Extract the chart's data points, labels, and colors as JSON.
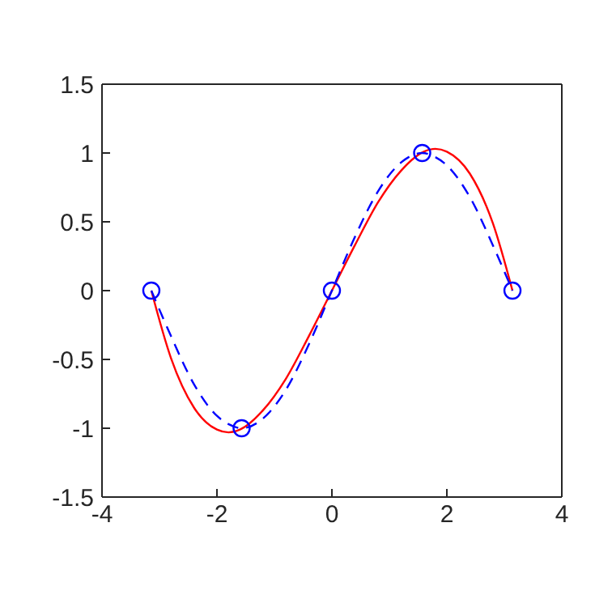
{
  "chart_data": {
    "type": "line",
    "xlim": [
      -4,
      4
    ],
    "ylim": [
      -1.5,
      1.5
    ],
    "xticks": [
      -4,
      -2,
      0,
      2,
      4
    ],
    "yticks": [
      -1.5,
      -1,
      -0.5,
      0,
      0.5,
      1,
      1.5
    ],
    "series": [
      {
        "color": "#ff0000",
        "line_style": "solid",
        "marker": "none",
        "x": [
          -3.1416,
          -2.8,
          -2.4,
          -2.0,
          -1.8,
          -1.6,
          -1.2,
          -0.8,
          -0.4,
          0,
          0.4,
          0.8,
          1.2,
          1.6,
          1.8,
          2.0,
          2.4,
          2.8,
          3.1416
        ],
        "values": [
          0,
          -0.49,
          -0.85,
          -1.01,
          -1.03,
          -1.01,
          -0.87,
          -0.64,
          -0.33,
          0,
          0.33,
          0.64,
          0.87,
          1.01,
          1.03,
          1.01,
          0.85,
          0.49,
          0
        ]
      },
      {
        "color": "#0000ff",
        "line_style": "dashed",
        "marker": "none",
        "x": [
          -3.1416,
          -2.8,
          -2.4,
          -2.0,
          -1.8,
          -1.5708,
          -1.2,
          -0.8,
          -0.4,
          0,
          0.4,
          0.8,
          1.2,
          1.5708,
          1.8,
          2.0,
          2.4,
          2.8,
          3.1416
        ],
        "values": [
          0,
          -0.33,
          -0.68,
          -0.91,
          -0.97,
          -1,
          -0.93,
          -0.72,
          -0.39,
          0,
          0.39,
          0.72,
          0.93,
          1,
          0.97,
          0.91,
          0.68,
          0.33,
          0
        ]
      },
      {
        "type": "scatter",
        "color": "#0000ff",
        "marker": "circle",
        "x": [
          -3.1416,
          -1.5708,
          0,
          1.5708,
          3.1416
        ],
        "values": [
          0,
          -1,
          0,
          1,
          0
        ]
      }
    ]
  }
}
